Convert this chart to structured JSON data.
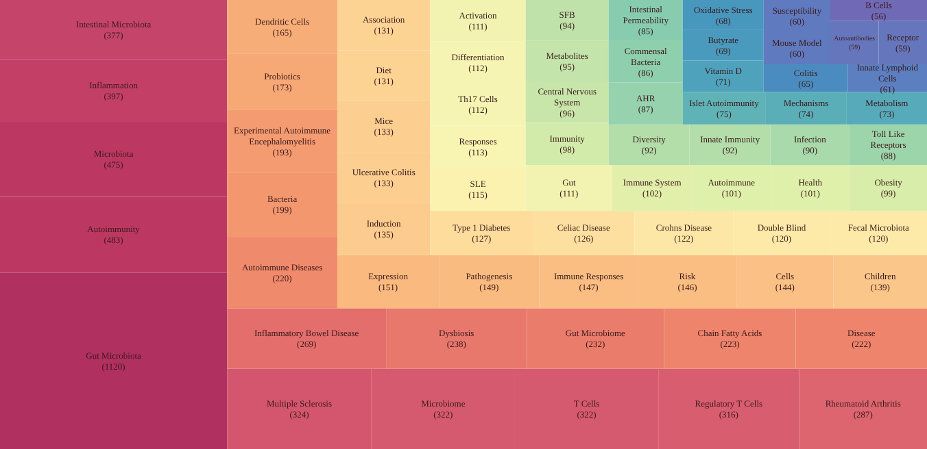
{
  "chart_data": {
    "type": "other",
    "categories": [
      "Gut Microbiota",
      "Autoimmunity",
      "Microbiota",
      "Inflammation",
      "Intestinal Microbiota",
      "Multiple Sclerosis",
      "Microbiome",
      "T Cells",
      "Regulatory T Cells",
      "Rheumatoid Arthritis",
      "Inflammatory Bowel Disease",
      "Dysbiosis",
      "Gut Microbiome",
      "Chain Fatty Acids",
      "Disease",
      "Autoimmune Diseases",
      "Bacteria",
      "Experimental Autoimmune Encephalomyelitis",
      "Probiotics",
      "Dendritic Cells",
      "Expression",
      "Pathogenesis",
      "Immune Responses",
      "Risk",
      "Cells",
      "Children",
      "Induction",
      "Ulcerative Colitis",
      "Mice",
      "Diet",
      "Association",
      "Type 1 Diabetes",
      "Celiac Disease",
      "Crohns Disease",
      "Double Blind",
      "Fecal Microbiota",
      "SLE",
      "Responses",
      "Th17 Cells",
      "Differentiation",
      "Activation",
      "Gut",
      "Immune System",
      "Autoimmune",
      "Health",
      "Obesity",
      "Immunity",
      "Central Nervous System",
      "Metabolites",
      "SFB",
      "Diversity",
      "Innate Immunity",
      "Infection",
      "Toll Like Receptors",
      "AHR",
      "Commensal Bacteria",
      "Intestinal Permeability",
      "Islet Autoimmunity",
      "Mechanisms",
      "Metabolism",
      "Vitamin D",
      "Butyrate",
      "Oxidative Stress",
      "Colitis",
      "Innate Lymphoid Cells",
      "Mouse Model",
      "Susceptibility",
      "Autoantibodies",
      "Receptor",
      "B Cells"
    ],
    "values": [
      1120,
      483,
      475,
      397,
      377,
      324,
      322,
      322,
      316,
      287,
      269,
      238,
      232,
      223,
      222,
      220,
      199,
      193,
      173,
      165,
      151,
      149,
      147,
      146,
      144,
      139,
      135,
      133,
      133,
      131,
      131,
      127,
      126,
      122,
      120,
      120,
      115,
      113,
      112,
      112,
      111,
      111,
      102,
      101,
      101,
      99,
      98,
      96,
      95,
      94,
      92,
      92,
      90,
      88,
      87,
      86,
      85,
      75,
      74,
      73,
      71,
      69,
      68,
      65,
      61,
      60,
      60,
      59,
      59,
      56
    ],
    "colors": [
      "#b0305f",
      "#bc3863",
      "#bc3863",
      "#c33f66",
      "#c5446a",
      "#d4566e",
      "#d55a6f",
      "#d55a6f",
      "#d85d6f",
      "#dc6570",
      "#e36e6c",
      "#e8786c",
      "#ea7c6c",
      "#ee846c",
      "#ee846c",
      "#f08a6c",
      "#f3976f",
      "#f49b71",
      "#f6a875",
      "#f7ad78",
      "#f9b97f",
      "#fabb80",
      "#fabd82",
      "#fabd82",
      "#fbc085",
      "#fbc68a",
      "#fccb8e",
      "#fcce90",
      "#fcce90",
      "#fdd394",
      "#fdd394",
      "#fddc9c",
      "#fde0a0",
      "#fde7a6",
      "#fdeaa8",
      "#fdeaa8",
      "#fcf2b0",
      "#f8f4b2",
      "#f5f4b2",
      "#f5f4b2",
      "#f2f3b0",
      "#f2f3b0",
      "#e2efaa",
      "#dff0aa",
      "#dff0aa",
      "#d9edaa",
      "#d3ebaa",
      "#c8e6aa",
      "#c3e4aa",
      "#bee2aa",
      "#b3deaa",
      "#b3deaa",
      "#a8daab",
      "#9dd5ab",
      "#95d2ad",
      "#8ecfae",
      "#87ccaf",
      "#5fb2b6",
      "#5aaeb8",
      "#56aaba",
      "#4fa2bc",
      "#4a9abe",
      "#4897bf",
      "#4b8cc0",
      "#5b7fc0",
      "#607abf",
      "#607abf",
      "#6676bc",
      "#6676bc",
      "#7069b5"
    ],
    "value_labels": [
      "(1120)",
      "(483)",
      "(475)",
      "(397)",
      "(377)",
      "(324)",
      "(322)",
      "(322)",
      "(316)",
      "(287)",
      "(269)",
      "(238)",
      "(232)",
      "(223)",
      "(222)",
      "(220)",
      "(199)",
      "(193)",
      "(173)",
      "(165)",
      "(151)",
      "(149)",
      "(147)",
      "(146)",
      "(144)",
      "(139)",
      "(135)",
      "(133)",
      "(133)",
      "(131)",
      "(131)",
      "(127)",
      "(126)",
      "(122)",
      "(120)",
      "(120)",
      "(115)",
      "(113)",
      "(112)",
      "(112)",
      "(111)",
      "(111)",
      "(102)",
      "(101)",
      "(101)",
      "(99)",
      "(98)",
      "(96)",
      "(95)",
      "(94)",
      "(92)",
      "(92)",
      "(90)",
      "(88)",
      "(87)",
      "(86)",
      "(85)",
      "(75)",
      "(74)",
      "(73)",
      "(71)",
      "(69)",
      "(68)",
      "(65)",
      "(61)",
      "(60)",
      "(60)",
      "(59)",
      "(59)",
      "(56)"
    ]
  }
}
